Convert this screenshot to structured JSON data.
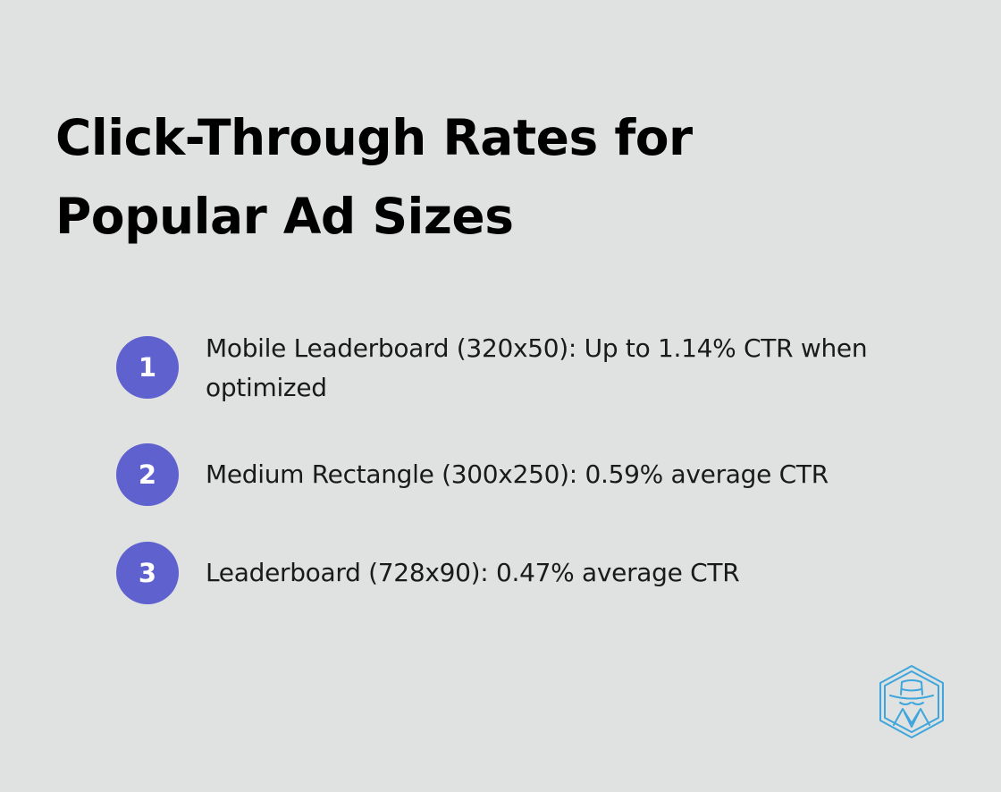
{
  "title": {
    "line1": "Click-Through Rates for",
    "line2": "Popular Ad Sizes"
  },
  "items": [
    {
      "number": "1",
      "text": "Mobile Leaderboard (320x50): Up to 1.14% CTR when optimized"
    },
    {
      "number": "2",
      "text": "Medium Rectangle (300x250): 0.59% average CTR"
    },
    {
      "number": "3",
      "text": "Leaderboard (728x90): 0.47% average CTR"
    }
  ],
  "colors": {
    "background": "#e0e2e1",
    "badge": "#5f61cf",
    "logo": "#3ea6dc"
  },
  "logo_icon": "spy-hat-hexagon-icon"
}
